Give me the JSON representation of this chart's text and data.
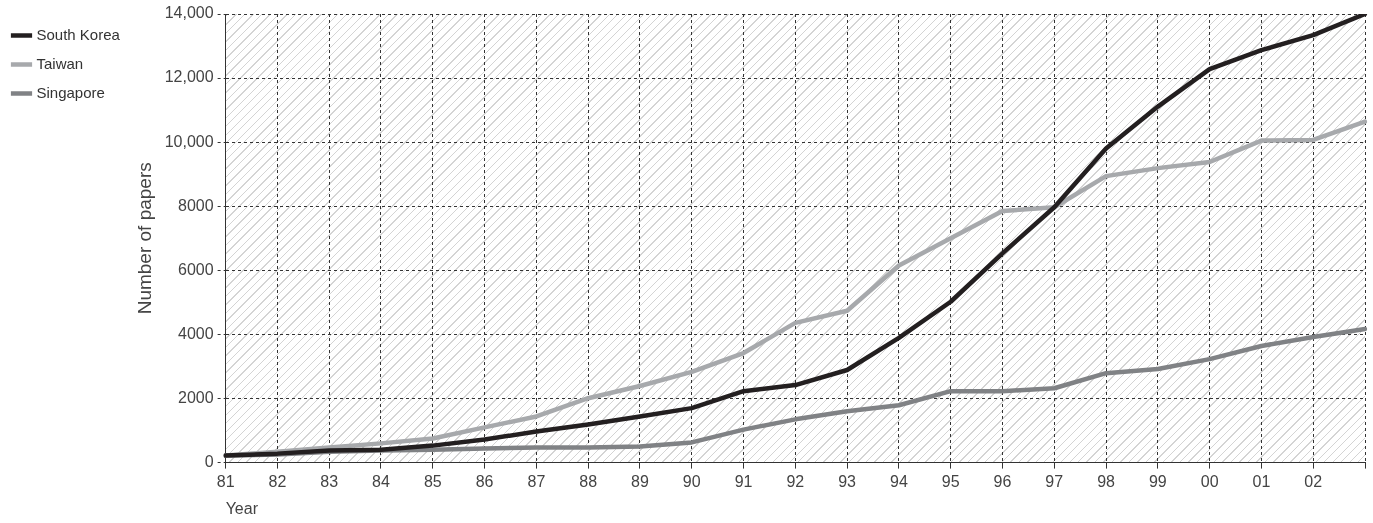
{
  "chart_data": {
    "type": "line",
    "xlabel": "Year",
    "ylabel": "Number of papers",
    "categories": [
      "81",
      "82",
      "83",
      "84",
      "85",
      "86",
      "87",
      "88",
      "89",
      "90",
      "91",
      "92",
      "93",
      "94",
      "95",
      "96",
      "97",
      "98",
      "99",
      "00",
      "01",
      "02",
      null
    ],
    "series": [
      {
        "name": "South Korea",
        "color": "#231f20",
        "values": [
          220,
          280,
          380,
          400,
          530,
          720,
          970,
          1190,
          1440,
          1700,
          2230,
          2420,
          2890,
          3890,
          5020,
          6530,
          7970,
          9800,
          11110,
          12280,
          12870,
          13340,
          14000
        ]
      },
      {
        "name": "Taiwan",
        "color": "#a7a9ac",
        "values": [
          220,
          340,
          470,
          600,
          750,
          1100,
          1440,
          2010,
          2390,
          2830,
          3420,
          4360,
          4740,
          6150,
          7000,
          7850,
          7970,
          8940,
          9190,
          9380,
          10050,
          10070,
          10640
        ]
      },
      {
        "name": "Singapore",
        "color": "#808285",
        "values": [
          220,
          250,
          340,
          380,
          400,
          440,
          470,
          470,
          500,
          630,
          1030,
          1350,
          1600,
          1790,
          2230,
          2230,
          2320,
          2790,
          2920,
          3230,
          3640,
          3920,
          4170
        ]
      }
    ],
    "ylim": [
      0,
      14000
    ],
    "yticks": [
      0,
      2000,
      4000,
      6000,
      8000,
      {
        "value": 10000,
        "label": "10,000"
      },
      {
        "value": 12000,
        "label": "12,000"
      },
      {
        "value": 14000,
        "label": "14,000"
      }
    ],
    "grid": true,
    "legend": "left",
    "marker": "none",
    "line_style": "solid"
  }
}
